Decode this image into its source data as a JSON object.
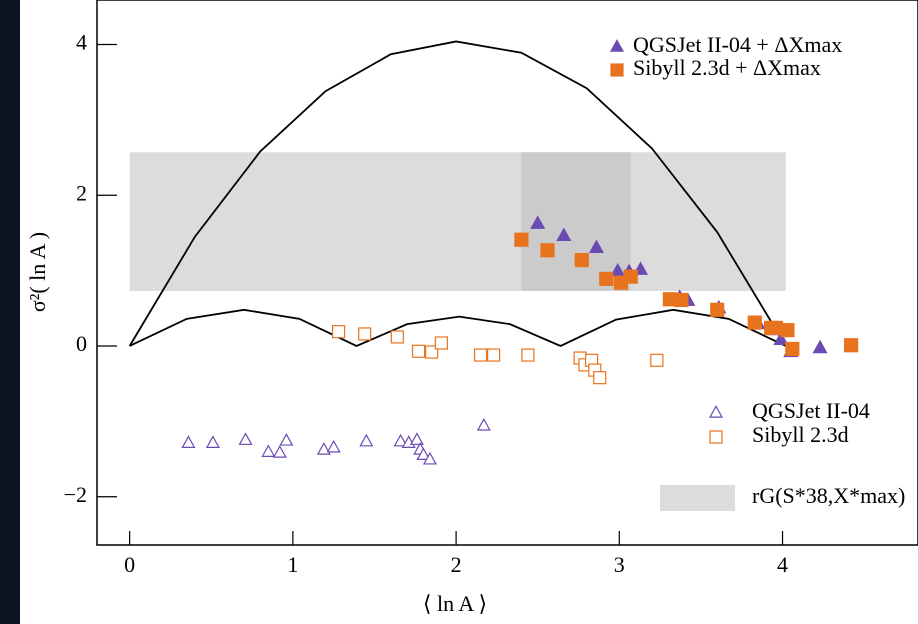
{
  "chart_data": {
    "type": "scatter",
    "xlabel": "⟨ ln A ⟩",
    "ylabel": "σ²( ln A )",
    "xlim": [
      -0.2,
      4.83
    ],
    "ylim": [
      -2.64,
      4.59
    ],
    "xticks": [
      0,
      1,
      2,
      3,
      4
    ],
    "yticks": [
      {
        "value": -2,
        "label": "−2"
      },
      0,
      2,
      4
    ],
    "band": {
      "name": "rG(S*38,X*max)",
      "color": "#dcdcdc",
      "x": [
        0,
        4.02
      ],
      "y": [
        0.73,
        2.57
      ]
    },
    "band_inner": {
      "color": "#cbcbcb",
      "x": [
        2.4,
        3.07
      ],
      "y": [
        0.73,
        2.57
      ]
    },
    "curves": [
      {
        "color": "#000000",
        "x": [
          0,
          0.4,
          0.8,
          1.2,
          1.6,
          2.0,
          2.4,
          2.8,
          3.2,
          3.6,
          4.02
        ],
        "values": [
          0,
          1.45,
          2.58,
          3.38,
          3.87,
          4.04,
          3.89,
          3.42,
          2.62,
          1.51,
          0
        ]
      },
      {
        "color": "#000000",
        "x": [
          0,
          0.35,
          0.7,
          1.04,
          1.39,
          1.7,
          2.02,
          2.33,
          2.64,
          2.98,
          3.33,
          3.67,
          4.02
        ],
        "values": [
          0,
          0.36,
          0.48,
          0.36,
          0,
          0.29,
          0.39,
          0.29,
          0,
          0.35,
          0.48,
          0.36,
          0
        ]
      }
    ],
    "series": [
      {
        "name": "QGSJet II-04 + ΔXmax",
        "color": "#6b4bb3",
        "marker": "triangle",
        "filled": true,
        "x": [
          2.5,
          2.66,
          2.86,
          2.99,
          3.06,
          3.13,
          3.37,
          3.42,
          3.61,
          3.85,
          3.95,
          3.99,
          4.05,
          4.23
        ],
        "values": [
          1.62,
          1.46,
          1.3,
          0.99,
          0.98,
          1.01,
          0.64,
          0.6,
          0.5,
          0.29,
          0.21,
          0.08,
          -0.08,
          -0.03
        ]
      },
      {
        "name": "Sibyll 2.3d     + ΔXmax",
        "color": "#e8731e",
        "marker": "square",
        "filled": true,
        "x": [
          2.4,
          2.56,
          2.77,
          2.92,
          3.01,
          3.07,
          3.31,
          3.38,
          3.6,
          3.83,
          3.93,
          3.96,
          4.03,
          4.06,
          4.42
        ],
        "values": [
          1.41,
          1.27,
          1.14,
          0.89,
          0.84,
          0.92,
          0.62,
          0.61,
          0.48,
          0.31,
          0.24,
          0.24,
          0.21,
          -0.04,
          0.01
        ]
      },
      {
        "name": "QGSJet II-04",
        "color": "#6b4bb3",
        "marker": "triangle",
        "filled": false,
        "x": [
          0.36,
          0.51,
          0.71,
          0.85,
          0.92,
          0.96,
          1.19,
          1.25,
          1.45,
          1.66,
          1.71,
          1.76,
          1.78,
          1.8,
          1.84,
          2.17
        ],
        "values": [
          -1.29,
          -1.29,
          -1.25,
          -1.41,
          -1.42,
          -1.26,
          -1.38,
          -1.35,
          -1.27,
          -1.27,
          -1.29,
          -1.25,
          -1.38,
          -1.45,
          -1.51,
          -1.06
        ]
      },
      {
        "name": "Sibyll 2.3d",
        "color": "#e8731e",
        "marker": "square",
        "filled": false,
        "x": [
          1.28,
          1.44,
          1.64,
          1.77,
          1.85,
          1.91,
          2.15,
          2.23,
          2.44,
          2.76,
          2.79,
          2.83,
          2.85,
          2.88,
          3.23
        ],
        "values": [
          0.19,
          0.16,
          0.12,
          -0.07,
          -0.08,
          0.04,
          -0.12,
          -0.12,
          -0.12,
          -0.16,
          -0.25,
          -0.19,
          -0.32,
          -0.42,
          -0.19
        ]
      }
    ]
  }
}
